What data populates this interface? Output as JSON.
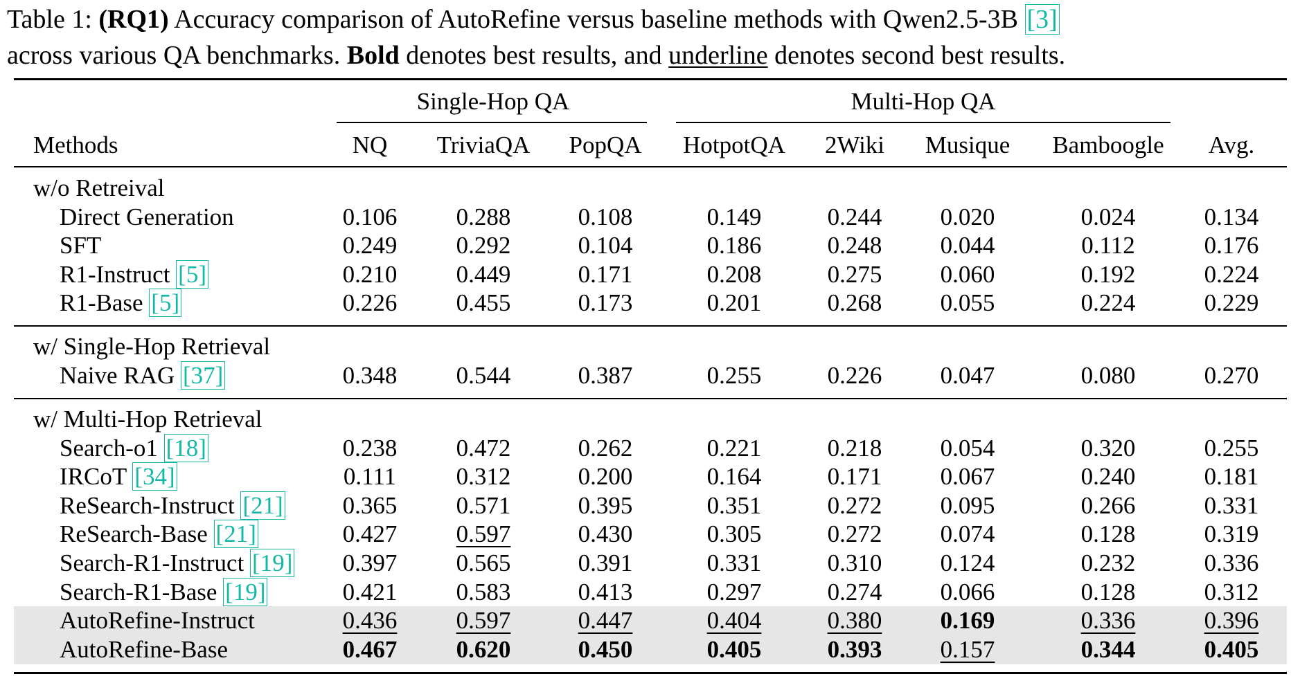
{
  "caption": {
    "prefix": "Table 1: ",
    "rq": "(RQ1)",
    "text1": " Accuracy comparison of AutoRefine versus baseline methods with Qwen2.5-3B ",
    "ref": "[3]",
    "text2_start": "across various QA benchmarks. ",
    "bold_word": "Bold",
    "text2_mid": " denotes best results, and ",
    "underline_word": "underline",
    "text2_end": " denotes second best results."
  },
  "headers": {
    "group_single": "Single-Hop QA",
    "group_multi": "Multi-Hop QA",
    "methods": "Methods",
    "columns": [
      "NQ",
      "TriviaQA",
      "PopQA",
      "HotpotQA",
      "2Wiki",
      "Musique",
      "Bamboogle",
      "Avg."
    ]
  },
  "sections": [
    {
      "title": "w/o Retreival",
      "rows": [
        {
          "name": "Direct Generation",
          "ref": "",
          "values": [
            "0.106",
            "0.288",
            "0.108",
            "0.149",
            "0.244",
            "0.020",
            "0.024",
            "0.134"
          ],
          "style": [
            "",
            "",
            "",
            "",
            "",
            "",
            "",
            ""
          ]
        },
        {
          "name": "SFT",
          "ref": "",
          "values": [
            "0.249",
            "0.292",
            "0.104",
            "0.186",
            "0.248",
            "0.044",
            "0.112",
            "0.176"
          ],
          "style": [
            "",
            "",
            "",
            "",
            "",
            "",
            "",
            ""
          ]
        },
        {
          "name": "R1-Instruct",
          "ref": "[5]",
          "values": [
            "0.210",
            "0.449",
            "0.171",
            "0.208",
            "0.275",
            "0.060",
            "0.192",
            "0.224"
          ],
          "style": [
            "",
            "",
            "",
            "",
            "",
            "",
            "",
            ""
          ]
        },
        {
          "name": "R1-Base",
          "ref": "[5]",
          "values": [
            "0.226",
            "0.455",
            "0.173",
            "0.201",
            "0.268",
            "0.055",
            "0.224",
            "0.229"
          ],
          "style": [
            "",
            "",
            "",
            "",
            "",
            "",
            "",
            ""
          ]
        }
      ]
    },
    {
      "title": "w/ Single-Hop Retrieval",
      "rows": [
        {
          "name": "Naive RAG",
          "ref": "[37]",
          "values": [
            "0.348",
            "0.544",
            "0.387",
            "0.255",
            "0.226",
            "0.047",
            "0.080",
            "0.270"
          ],
          "style": [
            "",
            "",
            "",
            "",
            "",
            "",
            "",
            ""
          ]
        }
      ]
    },
    {
      "title": "w/ Multi-Hop Retrieval",
      "rows": [
        {
          "name": "Search-o1",
          "ref": "[18]",
          "values": [
            "0.238",
            "0.472",
            "0.262",
            "0.221",
            "0.218",
            "0.054",
            "0.320",
            "0.255"
          ],
          "style": [
            "",
            "",
            "",
            "",
            "",
            "",
            "",
            ""
          ]
        },
        {
          "name": "IRCoT",
          "ref": "[34]",
          "values": [
            "0.111",
            "0.312",
            "0.200",
            "0.164",
            "0.171",
            "0.067",
            "0.240",
            "0.181"
          ],
          "style": [
            "",
            "",
            "",
            "",
            "",
            "",
            "",
            ""
          ]
        },
        {
          "name": "ReSearch-Instruct",
          "ref": "[21]",
          "values": [
            "0.365",
            "0.571",
            "0.395",
            "0.351",
            "0.272",
            "0.095",
            "0.266",
            "0.331"
          ],
          "style": [
            "",
            "",
            "",
            "",
            "",
            "",
            "",
            ""
          ]
        },
        {
          "name": "ReSearch-Base",
          "ref": "[21]",
          "values": [
            "0.427",
            "0.597",
            "0.430",
            "0.305",
            "0.272",
            "0.074",
            "0.128",
            "0.319"
          ],
          "style": [
            "",
            "u",
            "",
            "",
            "",
            "",
            "",
            ""
          ]
        },
        {
          "name": "Search-R1-Instruct",
          "ref": "[19]",
          "values": [
            "0.397",
            "0.565",
            "0.391",
            "0.331",
            "0.310",
            "0.124",
            "0.232",
            "0.336"
          ],
          "style": [
            "",
            "",
            "",
            "",
            "",
            "",
            "",
            ""
          ]
        },
        {
          "name": "Search-R1-Base",
          "ref": "[19]",
          "values": [
            "0.421",
            "0.583",
            "0.413",
            "0.297",
            "0.274",
            "0.066",
            "0.128",
            "0.312"
          ],
          "style": [
            "",
            "",
            "",
            "",
            "",
            "",
            "",
            ""
          ]
        },
        {
          "name": "AutoRefine-Instruct",
          "ref": "",
          "values": [
            "0.436",
            "0.597",
            "0.447",
            "0.404",
            "0.380",
            "0.169",
            "0.336",
            "0.396"
          ],
          "style": [
            "u",
            "u",
            "u",
            "u",
            "u",
            "b",
            "u",
            "u"
          ],
          "shaded": true
        },
        {
          "name": "AutoRefine-Base",
          "ref": "",
          "values": [
            "0.467",
            "0.620",
            "0.450",
            "0.405",
            "0.393",
            "0.157",
            "0.344",
            "0.405"
          ],
          "style": [
            "b",
            "b",
            "b",
            "b",
            "b",
            "u",
            "b",
            "b"
          ],
          "shaded": true
        }
      ]
    }
  ]
}
